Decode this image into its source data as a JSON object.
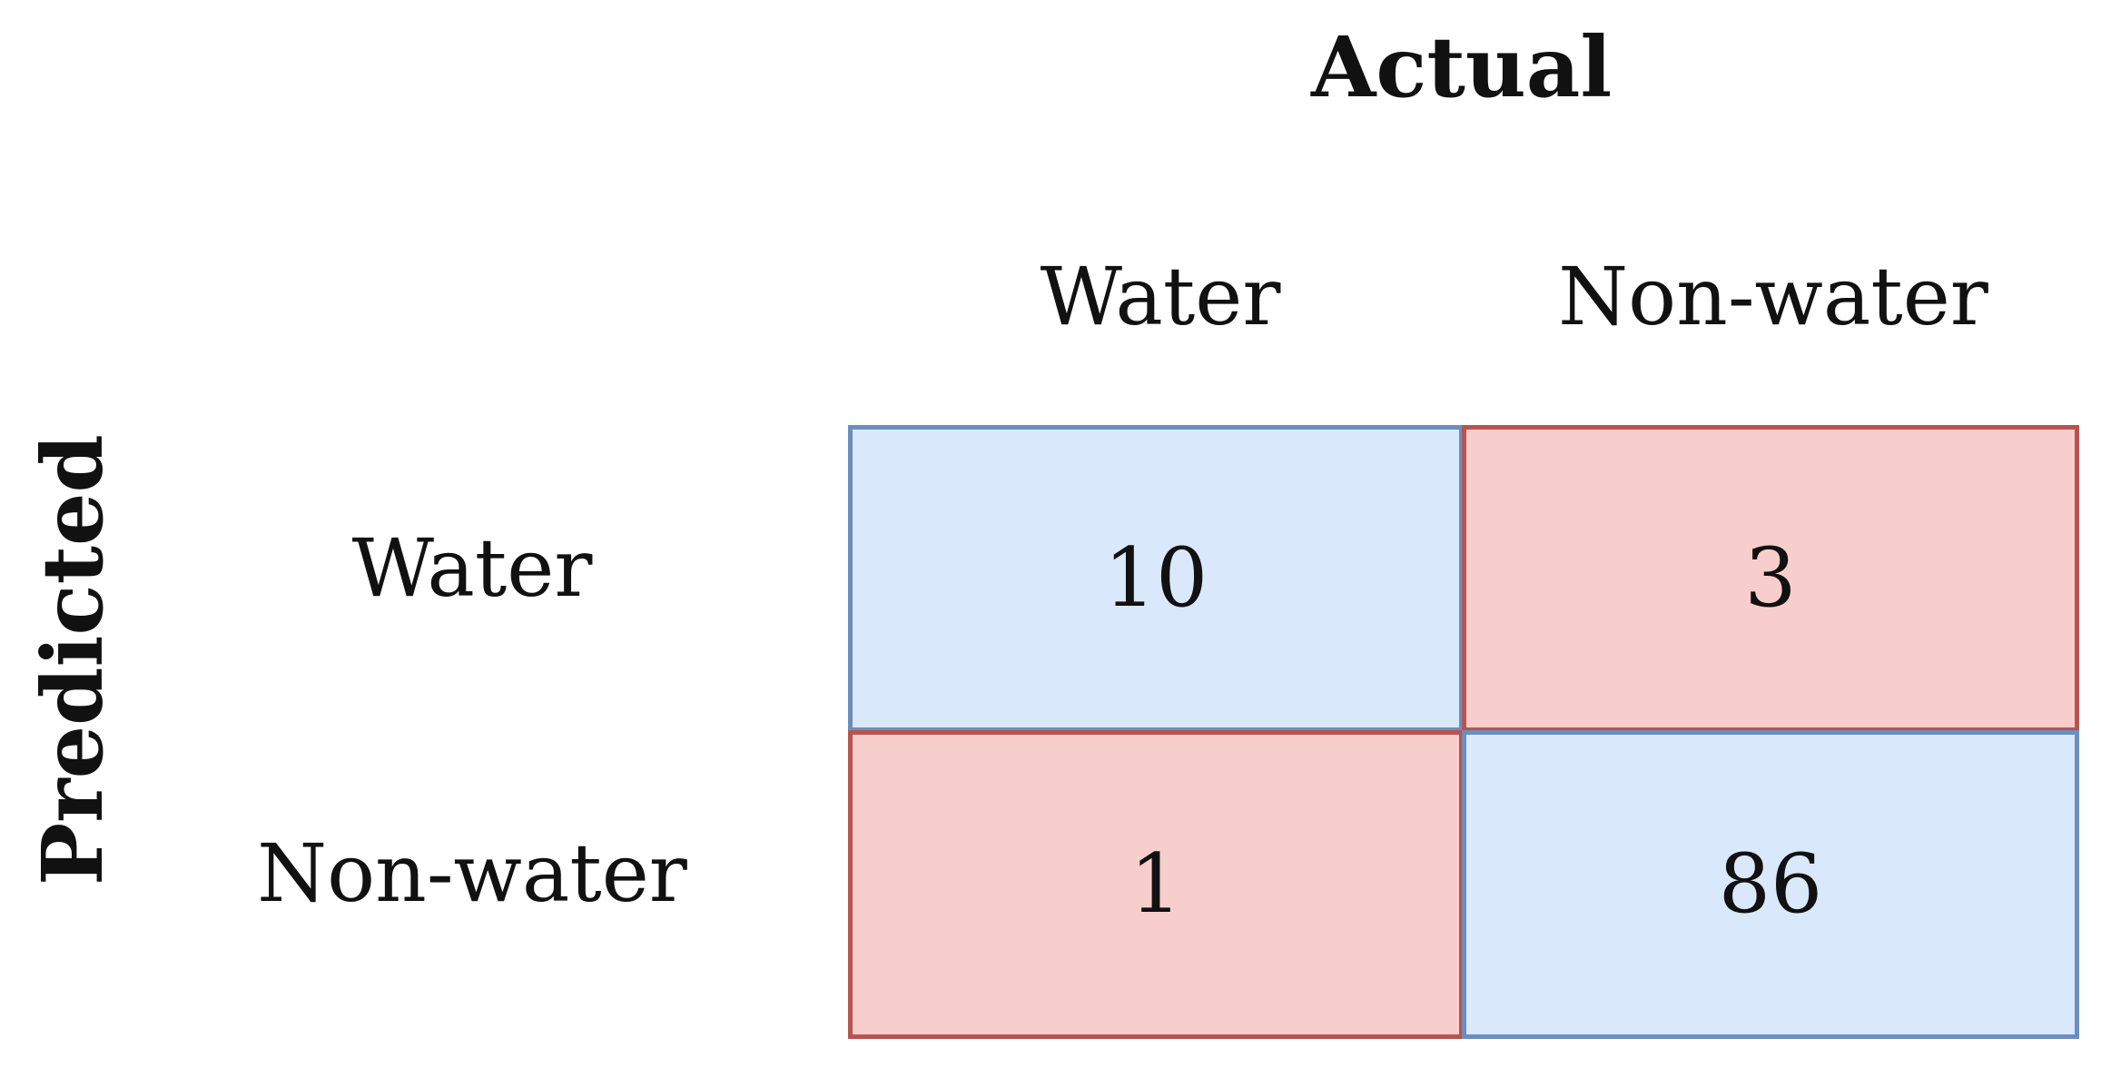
{
  "diagram": {
    "title": "Actual",
    "y_axis_label": "Predicted",
    "columns": [
      "Water",
      "Non-water"
    ],
    "rows": [
      "Water",
      "Non-water"
    ],
    "matrix": [
      [
        10,
        3
      ],
      [
        1,
        86
      ]
    ],
    "colors": {
      "correct_fill": "#dae8fc",
      "correct_border": "#6c8ebf",
      "error_fill": "#f8cecc",
      "error_border": "#b85450"
    }
  }
}
